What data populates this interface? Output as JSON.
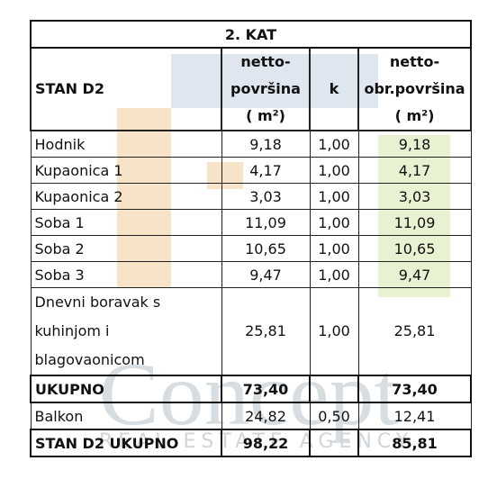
{
  "table": {
    "title": "2. KAT",
    "header": {
      "name": "STAN D2",
      "area": [
        "netto-",
        "površina",
        "( m²)"
      ],
      "k": "k",
      "net": [
        "netto-",
        "obr.površina",
        "( m²)"
      ]
    },
    "rows": [
      {
        "name": [
          "Hodnik"
        ],
        "area": "9,18",
        "k": "1,00",
        "net": "9,18"
      },
      {
        "name": [
          "Kupaonica 1"
        ],
        "area": "4,17",
        "k": "1,00",
        "net": "4,17"
      },
      {
        "name": [
          "Kupaonica 2"
        ],
        "area": "3,03",
        "k": "1,00",
        "net": "3,03"
      },
      {
        "name": [
          "Soba 1"
        ],
        "area": "11,09",
        "k": "1,00",
        "net": "11,09"
      },
      {
        "name": [
          "Soba 2"
        ],
        "area": "10,65",
        "k": "1,00",
        "net": "10,65"
      },
      {
        "name": [
          "Soba 3"
        ],
        "area": "9,47",
        "k": "1,00",
        "net": "9,47"
      },
      {
        "name": [
          "Dnevni boravak s",
          "kuhinjom i",
          "blagovaonicom"
        ],
        "area": "25,81",
        "k": "1,00",
        "net": "25,81"
      },
      {
        "name": [
          "UKUPNO"
        ],
        "area": "73,40",
        "net": "73,40",
        "bold": true
      },
      {
        "name": [
          "Balkon"
        ],
        "area": "24,82",
        "k": "0,50",
        "net": "12,41"
      },
      {
        "name": [
          "STAN D2 UKUPNO"
        ],
        "area": "98,22",
        "net": "85,81",
        "bold": true
      }
    ]
  },
  "watermark": {
    "brand": "Concept",
    "tagline": "REAL ESTATE AGENCY"
  }
}
